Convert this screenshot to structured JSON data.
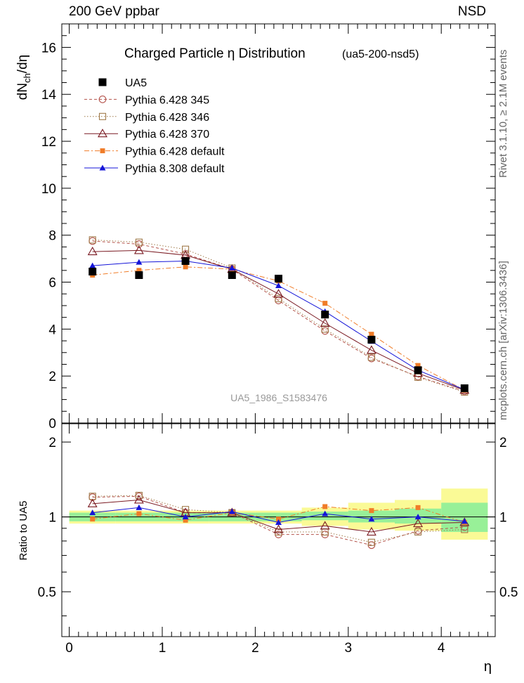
{
  "header": {
    "left": "200 GeV ppbar",
    "right": "NSD"
  },
  "side_labels": {
    "rivet": "Rivet 3.1.10, ≥ 2.1M events",
    "mcplots": "mcplots.cern.ch [arXiv:1306.3436]"
  },
  "chart_data": [
    {
      "type": "scatter",
      "title": "Charged Particle  η Distribution",
      "subtitle": "(ua5-200-nsd5)",
      "watermark": "UA5_1986_S1583476",
      "ylabel": "dN_ch/dη",
      "xlim": [
        -0.08,
        4.58
      ],
      "ylim": [
        0,
        17
      ],
      "yticks": [
        0,
        2,
        4,
        6,
        8,
        10,
        12,
        14,
        16
      ],
      "legend_position": "top-left",
      "x": [
        0.25,
        0.75,
        1.25,
        1.75,
        2.25,
        2.75,
        3.25,
        3.75,
        4.25
      ],
      "series": [
        {
          "name": "UA5",
          "color": "#000000",
          "marker": "filled-square",
          "line": "none",
          "values": [
            6.45,
            6.3,
            6.9,
            6.3,
            6.15,
            4.62,
            3.55,
            2.25,
            1.48
          ]
        },
        {
          "name": "Pythia 6.428 345",
          "color": "#b4524a",
          "marker": "open-circle",
          "line": "dashed",
          "values": [
            7.75,
            7.62,
            7.2,
            6.55,
            5.22,
            3.92,
            2.75,
            1.98,
            1.35
          ]
        },
        {
          "name": "Pythia 6.428 346",
          "color": "#a07a4a",
          "marker": "open-square",
          "line": "dotted",
          "values": [
            7.8,
            7.7,
            7.4,
            6.6,
            5.3,
            4.0,
            2.8,
            1.95,
            1.32
          ]
        },
        {
          "name": "Pythia 6.428 370",
          "color": "#7a1a22",
          "marker": "open-triangle",
          "line": "solid",
          "values": [
            7.3,
            7.35,
            7.15,
            6.55,
            5.5,
            4.25,
            3.1,
            2.12,
            1.4
          ]
        },
        {
          "name": "Pythia 6.428 default",
          "color": "#f07c28",
          "marker": "filled-square-small",
          "line": "dashdot",
          "values": [
            6.3,
            6.5,
            6.65,
            6.55,
            6.05,
            5.1,
            3.78,
            2.45,
            1.4
          ]
        },
        {
          "name": "Pythia 8.308 default",
          "color": "#1515d8",
          "marker": "filled-triangle",
          "line": "solid",
          "values": [
            6.7,
            6.85,
            6.9,
            6.6,
            5.85,
            4.75,
            3.48,
            2.25,
            1.42
          ]
        }
      ]
    },
    {
      "type": "scatter",
      "ylabel": "Ratio to UA5",
      "xlabel": "η",
      "xlim": [
        -0.08,
        4.58
      ],
      "ylim": [
        0.33,
        2.37
      ],
      "xticks": [
        0,
        1,
        2,
        3,
        4
      ],
      "yticks": [
        0.5,
        1,
        2
      ],
      "reference": 1,
      "bin_edges": [
        0,
        0.5,
        1,
        1.5,
        2,
        2.5,
        3,
        3.5,
        4,
        4.5
      ],
      "band_inner": {
        "color": "#98f098",
        "lo": [
          0.96,
          0.96,
          0.96,
          0.96,
          0.96,
          0.97,
          0.95,
          0.94,
          0.87
        ],
        "hi": [
          1.04,
          1.04,
          1.04,
          1.04,
          1.04,
          1.05,
          1.06,
          1.08,
          1.14
        ]
      },
      "band_outer": {
        "color": "#fafa96",
        "lo": [
          0.94,
          0.94,
          0.94,
          0.94,
          0.94,
          0.92,
          0.89,
          0.88,
          0.81
        ],
        "hi": [
          1.06,
          1.06,
          1.06,
          1.06,
          1.06,
          1.09,
          1.14,
          1.17,
          1.3
        ]
      },
      "series": [
        {
          "name": "Pythia 6.428 345",
          "values": [
            1.2,
            1.21,
            1.04,
            1.04,
            0.85,
            0.85,
            0.77,
            0.88,
            0.91
          ]
        },
        {
          "name": "Pythia 6.428 346",
          "values": [
            1.21,
            1.22,
            1.07,
            1.04,
            0.87,
            0.87,
            0.79,
            0.87,
            0.89
          ]
        },
        {
          "name": "Pythia 6.428 370",
          "values": [
            1.13,
            1.17,
            1.04,
            1.04,
            0.89,
            0.92,
            0.87,
            0.94,
            0.95
          ]
        },
        {
          "name": "Pythia 6.428 default",
          "values": [
            0.98,
            1.03,
            0.97,
            1.04,
            0.98,
            1.1,
            1.06,
            1.09,
            0.95
          ]
        },
        {
          "name": "Pythia 8.308 default",
          "values": [
            1.04,
            1.09,
            1.0,
            1.05,
            0.95,
            1.03,
            0.98,
            1.0,
            0.96
          ]
        }
      ]
    }
  ]
}
